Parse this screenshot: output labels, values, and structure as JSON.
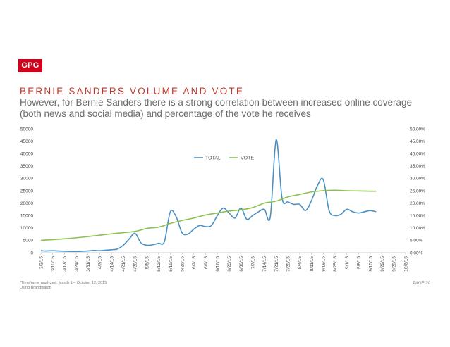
{
  "logo_text": "GPG",
  "title": "BERNIE SANDERS VOLUME AND VOTE",
  "subtitle": "However, for Bernie Sanders there is a strong correlation between increased online coverage (both news and social media) and percentage of the vote he receives",
  "footnote": [
    "*Timeframe analyzed: March 1 – October 12, 2015",
    "Using Brandwatch"
  ],
  "page_label": "PAGE 20",
  "chart_data": {
    "type": "line",
    "title": "",
    "x": [
      "3/3/15",
      "3/10/15",
      "3/17/15",
      "3/24/15",
      "3/31/15",
      "4/7/15",
      "4/14/15",
      "4/21/15",
      "4/28/15",
      "5/5/15",
      "5/12/15",
      "5/19/15",
      "5/26/15",
      "6/2/15",
      "6/9/15",
      "6/16/15",
      "6/23/15",
      "6/30/15",
      "7/7/15",
      "7/14/15",
      "7/21/15",
      "7/28/15",
      "8/4/15",
      "8/11/15",
      "8/18/15",
      "8/25/15",
      "9/1/15",
      "9/8/15",
      "9/15/15",
      "9/22/15",
      "9/29/15",
      "10/6/15"
    ],
    "y_left": {
      "min": 0,
      "max": 50000,
      "ticks": [
        "0",
        "5000",
        "10000",
        "15000",
        "20000",
        "25000",
        "30000",
        "35000",
        "40000",
        "45000",
        "50000"
      ]
    },
    "y_right": {
      "min": 0,
      "max": 50,
      "ticks": [
        "0.00%",
        "5.00%",
        "10.00%",
        "15.00%",
        "20.00%",
        "25.00%",
        "30.00%",
        "35.00%",
        "40.00%",
        "45.00%",
        "50.00%"
      ]
    },
    "legend_position": "top-center",
    "grid": false,
    "series": [
      {
        "name": "TOTAL",
        "axis": "left",
        "color": "#4a90c2",
        "values": [
          [
            0,
            800
          ],
          [
            0.5,
            700
          ],
          [
            1,
            800
          ],
          [
            1.5,
            700
          ],
          [
            2,
            600
          ],
          [
            3,
            500
          ],
          [
            3.5,
            600
          ],
          [
            4,
            700
          ],
          [
            4.5,
            900
          ],
          [
            5,
            800
          ],
          [
            5.5,
            1000
          ],
          [
            6,
            1200
          ],
          [
            6.5,
            1500
          ],
          [
            7,
            3000
          ],
          [
            7.5,
            5500
          ],
          [
            8,
            7800
          ],
          [
            8.5,
            4000
          ],
          [
            9,
            3000
          ],
          [
            9.5,
            3200
          ],
          [
            10,
            3800
          ],
          [
            10.5,
            4500
          ],
          [
            11,
            16500
          ],
          [
            11.5,
            14500
          ],
          [
            12,
            8000
          ],
          [
            12.5,
            7500
          ],
          [
            13,
            9500
          ],
          [
            13.5,
            11000
          ],
          [
            14,
            10500
          ],
          [
            14.5,
            11000
          ],
          [
            15,
            15000
          ],
          [
            15.5,
            18000
          ],
          [
            16,
            16000
          ],
          [
            16.5,
            14000
          ],
          [
            17,
            18000
          ],
          [
            17.5,
            13500
          ],
          [
            18,
            15000
          ],
          [
            18.5,
            16500
          ],
          [
            19,
            17500
          ],
          [
            19.5,
            14500
          ],
          [
            20,
            45500
          ],
          [
            20.5,
            22000
          ],
          [
            21,
            20500
          ],
          [
            21.5,
            19500
          ],
          [
            22,
            19500
          ],
          [
            22.5,
            17000
          ],
          [
            23,
            21000
          ],
          [
            23.5,
            27000
          ],
          [
            24,
            29500
          ],
          [
            24.5,
            17000
          ],
          [
            25,
            15000
          ],
          [
            25.5,
            15500
          ],
          [
            26,
            17500
          ],
          [
            26.5,
            16500
          ],
          [
            27,
            16000
          ],
          [
            27.5,
            16500
          ],
          [
            28,
            17000
          ],
          [
            28.5,
            16500
          ]
        ]
      },
      {
        "name": "VOTE",
        "axis": "right",
        "color": "#8cc152",
        "values": [
          [
            0,
            5.0
          ],
          [
            2,
            5.6
          ],
          [
            4,
            6.5
          ],
          [
            6,
            7.6
          ],
          [
            8,
            8.6
          ],
          [
            9,
            9.8
          ],
          [
            10,
            10.3
          ],
          [
            11,
            11.8
          ],
          [
            12,
            13.0
          ],
          [
            13,
            14.0
          ],
          [
            14,
            15.2
          ],
          [
            15,
            16.0
          ],
          [
            16,
            16.8
          ],
          [
            17,
            17.3
          ],
          [
            18,
            18.2
          ],
          [
            19,
            20.0
          ],
          [
            20,
            20.8
          ],
          [
            21,
            22.5
          ],
          [
            22,
            23.5
          ],
          [
            23,
            24.5
          ],
          [
            24,
            25.0
          ],
          [
            25,
            25.2
          ],
          [
            26,
            25.0
          ],
          [
            27,
            24.9
          ],
          [
            28,
            24.8
          ],
          [
            28.5,
            24.8
          ]
        ]
      }
    ]
  }
}
